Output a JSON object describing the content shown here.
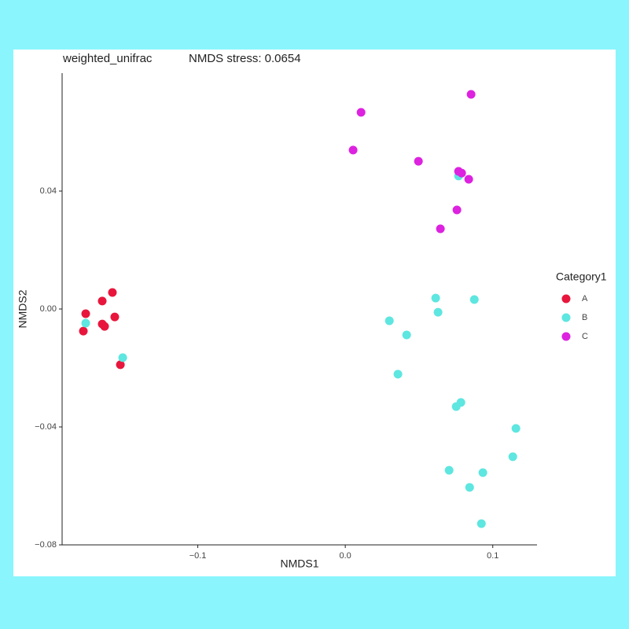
{
  "chart_data": {
    "type": "scatter",
    "title": "weighted_unifrac",
    "subtitle": "NMDS stress: 0.0654",
    "x_label": "NMDS1",
    "y_label": "NMDS2",
    "legend_title": "Category1",
    "legend": "right",
    "grid": false,
    "xlim": [
      -0.192,
      0.13
    ],
    "ylim": [
      -0.08,
      0.08
    ],
    "xticks": [
      {
        "value": -0.1,
        "label": "−0.1"
      },
      {
        "value": 0,
        "label": "0.0"
      },
      0.1
    ],
    "yticks": [
      {
        "value": -0.08,
        "label": "−0.08"
      },
      {
        "value": -0.04,
        "label": "−0.04"
      },
      {
        "value": 0,
        "label": "0.00"
      },
      0.04
    ],
    "series": [
      {
        "name": "A",
        "color": "#e8163c",
        "x": [
          -0.176,
          -0.1776,
          -0.1648,
          -0.1579,
          -0.1563,
          -0.1648,
          -0.1632,
          -0.1525
        ],
        "values": [
          -0.0016,
          -0.0075,
          0.0027,
          0.0056,
          -0.0027,
          -0.0051,
          -0.0059,
          -0.0189
        ]
      },
      {
        "name": "B",
        "color": "#5ee6e0",
        "x": [
          -0.176,
          -0.1509,
          0.0299,
          0.0416,
          0.0357,
          0.0613,
          0.0629,
          0.0875,
          0.0768,
          0.0784,
          0.0752,
          0.0704,
          0.0933,
          0.0843,
          0.1157,
          0.1136,
          0.0923
        ],
        "values": [
          -0.0048,
          -0.0165,
          -0.004,
          -0.0088,
          -0.0221,
          0.0037,
          -0.0011,
          0.0032,
          0.0451,
          -0.0317,
          -0.0331,
          -0.0547,
          -0.0555,
          -0.0605,
          -0.0405,
          -0.0501,
          -0.0728
        ]
      },
      {
        "name": "C",
        "color": "#dd22e0",
        "x": [
          0.0853,
          0.0107,
          0.0053,
          0.0496,
          0.0768,
          0.0789,
          0.0837,
          0.0757,
          0.0645
        ],
        "values": [
          0.0728,
          0.0667,
          0.0539,
          0.0501,
          0.0467,
          0.0461,
          0.044,
          0.0336,
          0.0272
        ]
      }
    ]
  }
}
